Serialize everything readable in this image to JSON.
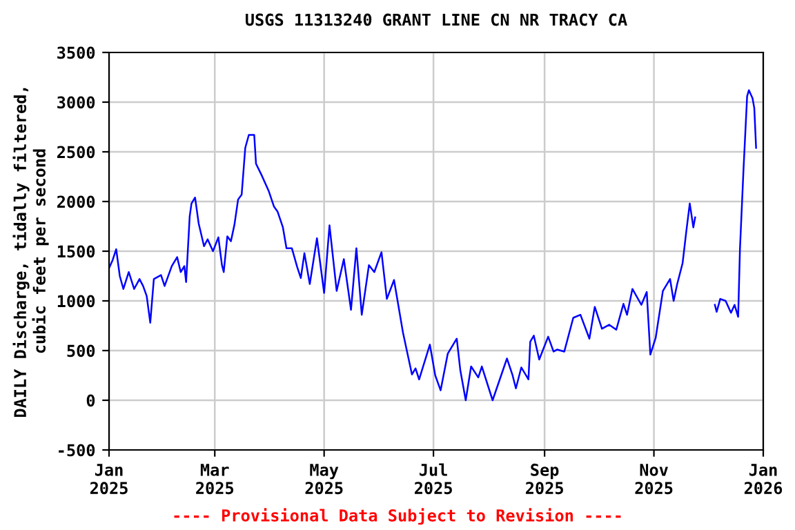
{
  "chart_data": {
    "type": "line",
    "title": "USGS 11313240 GRANT LINE CN NR TRACY CA",
    "ylabel": "DAILY Discharge, tidally filtered,\ncubic feet per second",
    "annotations": [
      "---- Provisional Data Subject to Revision ----"
    ],
    "x": [
      "2025-01-01",
      "2025-01-03",
      "2025-01-05",
      "2025-01-07",
      "2025-01-09",
      "2025-01-12",
      "2025-01-15",
      "2025-01-18",
      "2025-01-20",
      "2025-01-22",
      "2025-01-24",
      "2025-01-26",
      "2025-01-30",
      "2025-02-01",
      "2025-02-05",
      "2025-02-08",
      "2025-02-10",
      "2025-02-12",
      "2025-02-13",
      "2025-02-15",
      "2025-02-16",
      "2025-02-18",
      "2025-02-20",
      "2025-02-23",
      "2025-02-25",
      "2025-02-28",
      "2025-03-03",
      "2025-03-05",
      "2025-03-06",
      "2025-03-08",
      "2025-03-10",
      "2025-03-12",
      "2025-03-14",
      "2025-03-16",
      "2025-03-18",
      "2025-03-20",
      "2025-03-23",
      "2025-03-24",
      "2025-03-27",
      "2025-03-31",
      "2025-04-03",
      "2025-04-05",
      "2025-04-08",
      "2025-04-10",
      "2025-04-13",
      "2025-04-16",
      "2025-04-18",
      "2025-04-20",
      "2025-04-23",
      "2025-04-27",
      "2025-05-01",
      "2025-05-04",
      "2025-05-08",
      "2025-05-12",
      "2025-05-16",
      "2025-05-19",
      "2025-05-22",
      "2025-05-26",
      "2025-05-29",
      "2025-06-02",
      "2025-06-05",
      "2025-06-09",
      "2025-06-14",
      "2025-06-19",
      "2025-06-21",
      "2025-06-23",
      "2025-06-29",
      "2025-07-02",
      "2025-07-05",
      "2025-07-09",
      "2025-07-14",
      "2025-07-16",
      "2025-07-19",
      "2025-07-22",
      "2025-07-26",
      "2025-07-28",
      "2025-08-03",
      "2025-08-11",
      "2025-08-14",
      "2025-08-16",
      "2025-08-19",
      "2025-08-23",
      "2025-08-24",
      "2025-08-26",
      "2025-08-29",
      "2025-09-03",
      "2025-09-06",
      "2025-09-08",
      "2025-09-12",
      "2025-09-17",
      "2025-09-21",
      "2025-09-26",
      "2025-09-29",
      "2025-10-03",
      "2025-10-07",
      "2025-10-11",
      "2025-10-15",
      "2025-10-17",
      "2025-10-20",
      "2025-10-25",
      "2025-10-28",
      "2025-10-30",
      "2025-11-02",
      "2025-11-06",
      "2025-11-10",
      "2025-11-12",
      "2025-11-14",
      "2025-11-17",
      "2025-11-19",
      "2025-11-21",
      "2025-11-23",
      "2025-11-24",
      "2025-12-01",
      "2025-12-05",
      "2025-12-06",
      "2025-12-08",
      "2025-12-11",
      "2025-12-14",
      "2025-12-16",
      "2025-12-18",
      "2025-12-19",
      "2025-12-21",
      "2025-12-23",
      "2025-12-24",
      "2025-12-26",
      "2025-12-27",
      "2025-12-28"
    ],
    "series": [
      {
        "color": "#0000ff",
        "values": [
          1330,
          1410,
          1520,
          1250,
          1120,
          1290,
          1120,
          1220,
          1150,
          1050,
          780,
          1220,
          1260,
          1150,
          1350,
          1440,
          1290,
          1350,
          1190,
          1850,
          1980,
          2040,
          1780,
          1550,
          1620,
          1500,
          1640,
          1360,
          1290,
          1650,
          1600,
          1770,
          2020,
          2070,
          2540,
          2670,
          2670,
          2380,
          2270,
          2110,
          1950,
          1900,
          1740,
          1530,
          1530,
          1340,
          1230,
          1480,
          1170,
          1630,
          1080,
          1760,
          1100,
          1420,
          910,
          1530,
          860,
          1360,
          1290,
          1490,
          1020,
          1210,
          680,
          260,
          320,
          210,
          560,
          250,
          100,
          470,
          620,
          300,
          0,
          340,
          230,
          340,
          0,
          420,
          260,
          120,
          330,
          210,
          590,
          650,
          410,
          640,
          490,
          510,
          490,
          830,
          860,
          620,
          940,
          720,
          760,
          710,
          970,
          860,
          1120,
          960,
          1090,
          460,
          630,
          1100,
          1220,
          1000,
          1170,
          1380,
          1690,
          1980,
          1740,
          1840,
          null,
          960,
          890,
          1020,
          1000,
          880,
          960,
          840,
          1520,
          2330,
          3060,
          3120,
          3040,
          2940,
          2540
        ]
      }
    ],
    "xlim": [
      "2025-01-01",
      "2026-01-01"
    ],
    "xticks": [
      {
        "value": "2025-01-01",
        "label": "Jan\n2025"
      },
      {
        "value": "2025-03-01",
        "label": "Mar\n2025"
      },
      {
        "value": "2025-05-01",
        "label": "May\n2025"
      },
      {
        "value": "2025-07-01",
        "label": "Jul\n2025"
      },
      {
        "value": "2025-09-01",
        "label": "Sep\n2025"
      },
      {
        "value": "2025-11-01",
        "label": "Nov\n2025"
      },
      {
        "value": "2026-01-01",
        "label": "Jan\n2026"
      }
    ],
    "ylim": [
      -500,
      3500
    ],
    "yticks": [
      -500,
      0,
      500,
      1000,
      1500,
      2000,
      2500,
      3000,
      3500
    ],
    "grid": true,
    "legend": false,
    "marker": "none",
    "line_style": "solid"
  }
}
